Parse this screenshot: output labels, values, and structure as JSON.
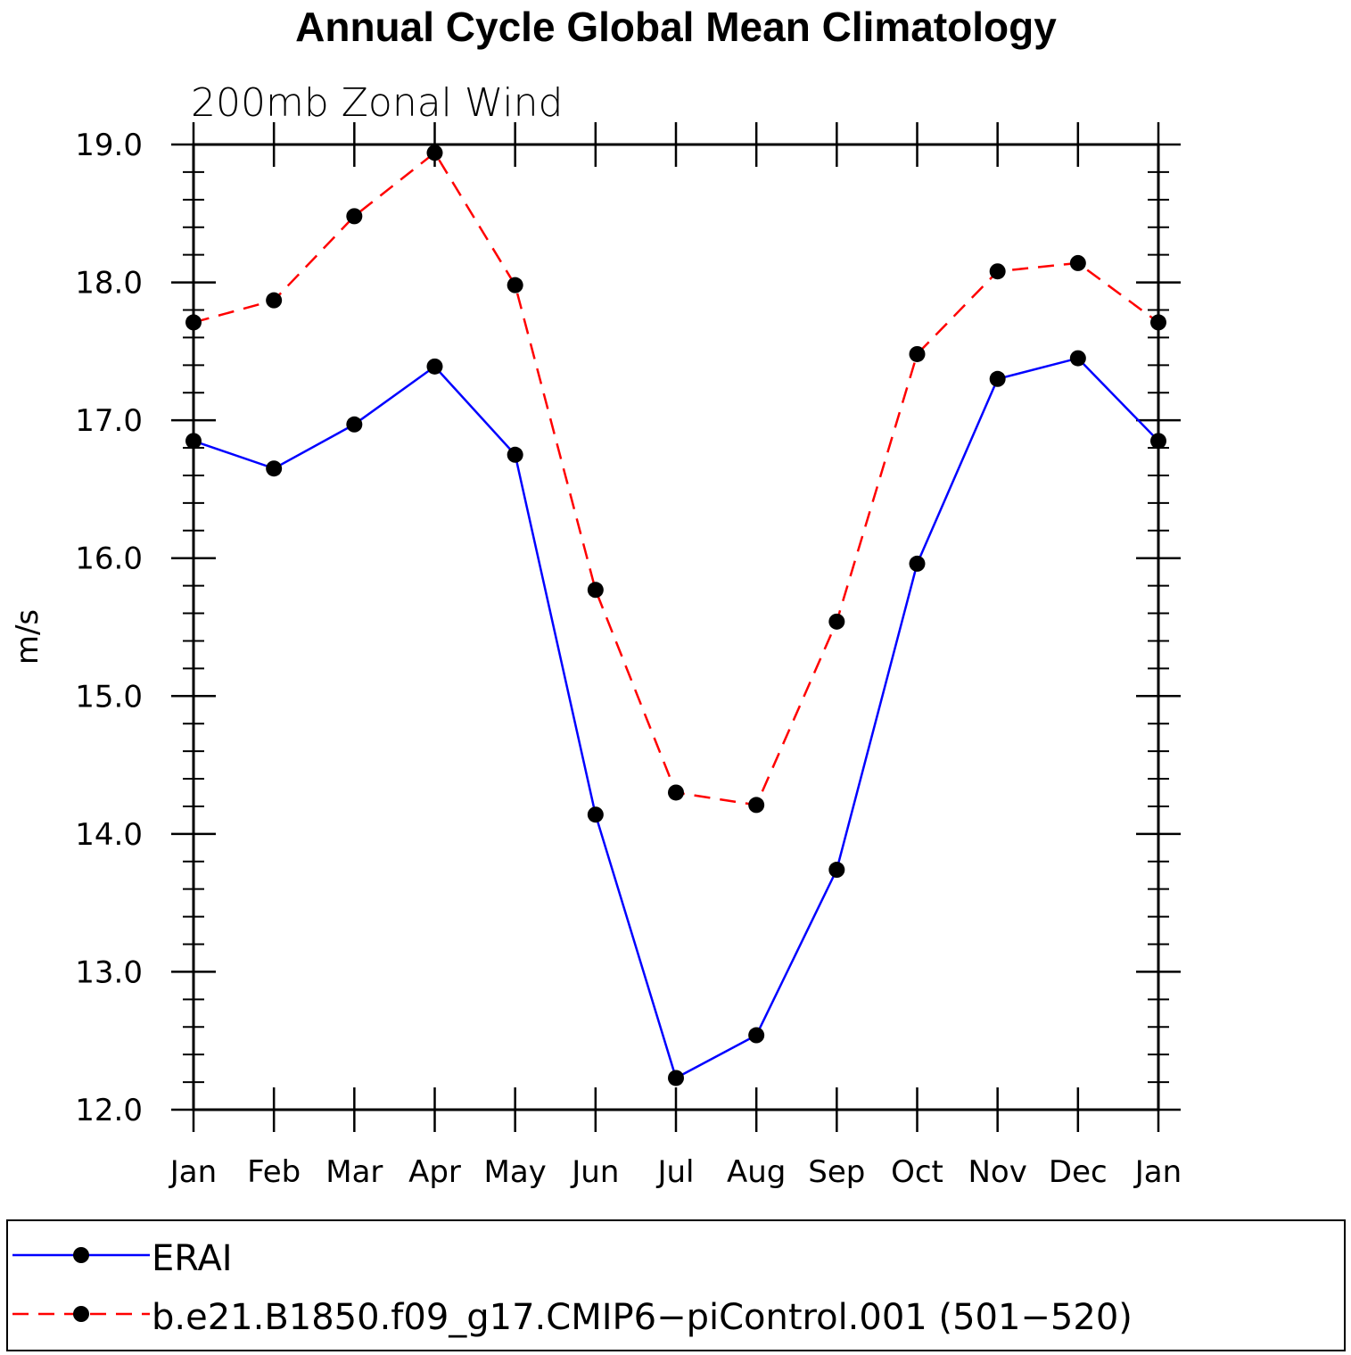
{
  "chart_data": {
    "type": "line",
    "title": "Annual Cycle Global Mean Climatology",
    "subtitle": "200mb  Zonal  Wind",
    "xlabel": "",
    "ylabel": "m/s",
    "ylim": [
      12.0,
      19.0
    ],
    "ytick_labels": [
      "12.0",
      "13.0",
      "14.0",
      "15.0",
      "16.0",
      "17.0",
      "18.0",
      "19.0"
    ],
    "yticks": [
      12,
      13,
      14,
      15,
      16,
      17,
      18,
      19
    ],
    "categories": [
      "Jan",
      "Feb",
      "Mar",
      "Apr",
      "May",
      "Jun",
      "Jul",
      "Aug",
      "Sep",
      "Oct",
      "Nov",
      "Dec",
      "Jan"
    ],
    "series": [
      {
        "name": "ERAI",
        "color": "#0000ff",
        "dash": "solid",
        "values": [
          16.85,
          16.65,
          16.97,
          17.39,
          16.75,
          14.14,
          12.23,
          12.54,
          13.74,
          15.96,
          17.3,
          17.45,
          16.85
        ]
      },
      {
        "name": "b.e21.B1850.f09_g17.CMIP6−piControl.001 (501−520)",
        "color": "#ff0000",
        "dash": "dashed",
        "values": [
          17.71,
          17.87,
          18.48,
          18.94,
          17.98,
          15.77,
          14.3,
          14.21,
          15.54,
          17.48,
          18.08,
          18.14,
          17.71
        ]
      }
    ],
    "marker_color": "#000000",
    "legend_position": "bottom"
  }
}
